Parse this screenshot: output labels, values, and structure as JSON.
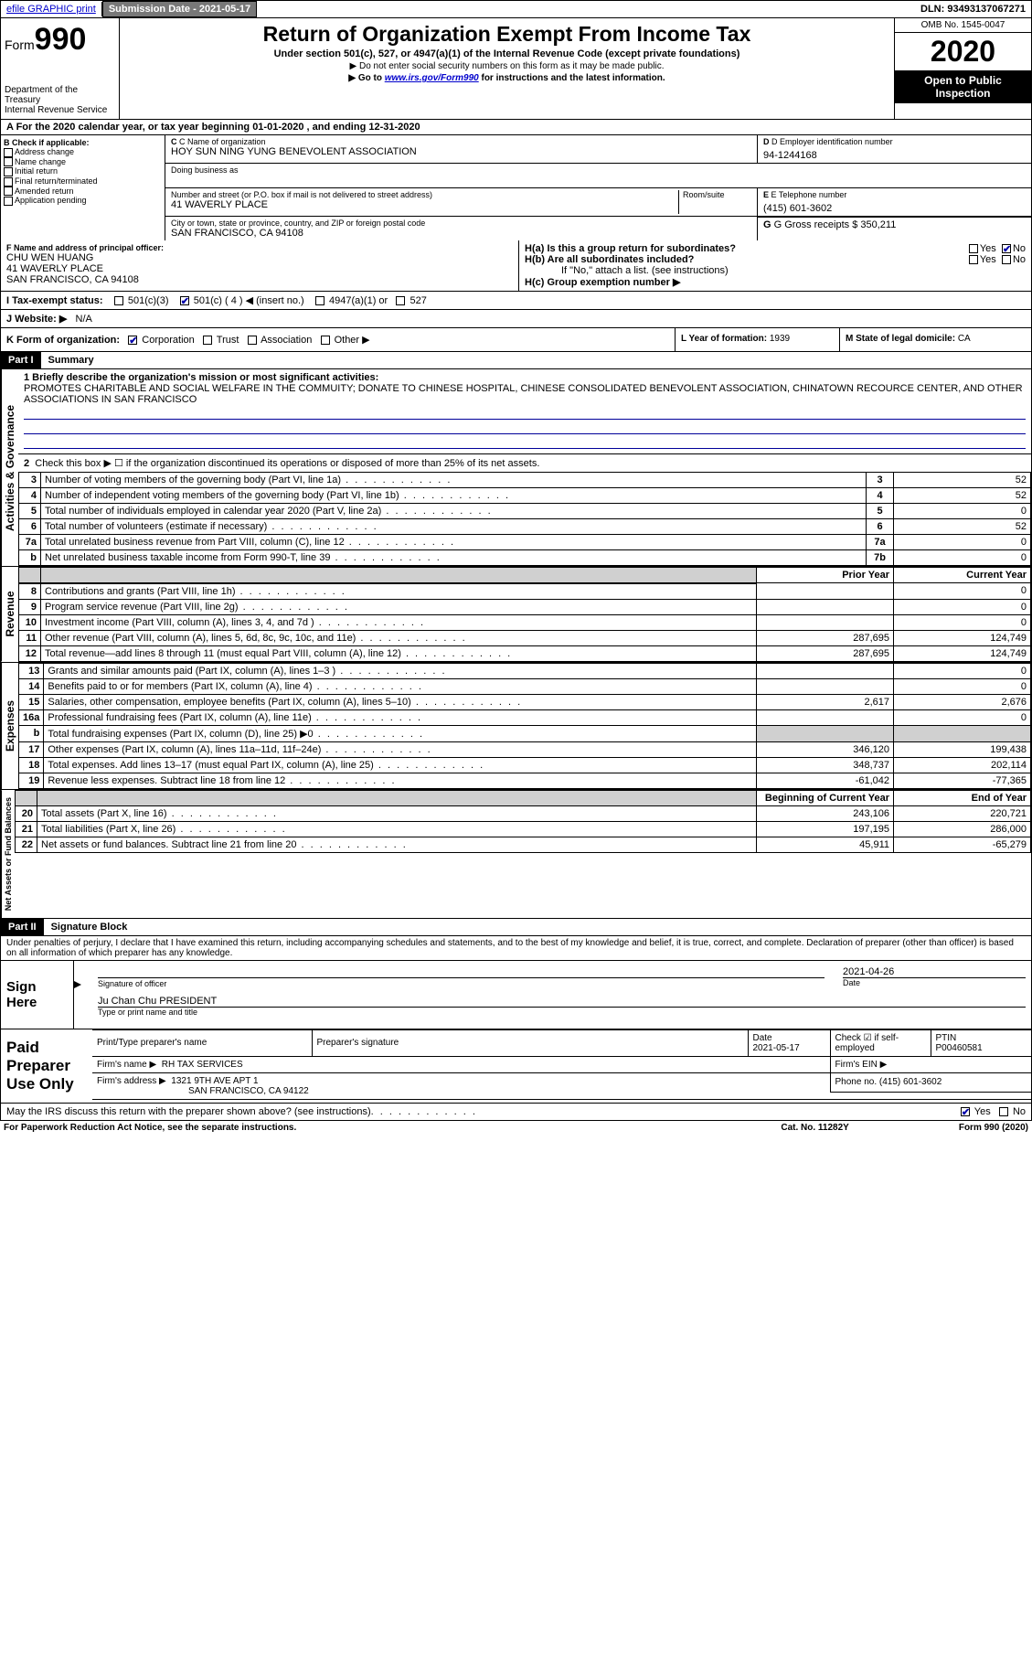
{
  "topbar": {
    "efile": "efile GRAPHIC print",
    "subdate_label": "Submission Date - 2021-05-17",
    "dln": "DLN: 93493137067271"
  },
  "header": {
    "form_prefix": "Form",
    "form_num": "990",
    "dept": "Department of the Treasury",
    "irs": "Internal Revenue Service",
    "title": "Return of Organization Exempt From Income Tax",
    "sub": "Under section 501(c), 527, or 4947(a)(1) of the Internal Revenue Code (except private foundations)",
    "note1": "▶ Do not enter social security numbers on this form as it may be made public.",
    "note2_pre": "▶ Go to ",
    "note2_link": "www.irs.gov/Form990",
    "note2_post": " for instructions and the latest information.",
    "omb": "OMB No. 1545-0047",
    "year": "2020",
    "inspect": "Open to Public Inspection"
  },
  "rowA": "A For the 2020 calendar year, or tax year beginning 01-01-2020    , and ending 12-31-2020",
  "colB": {
    "label": "B Check if applicable:",
    "items": [
      "Address change",
      "Name change",
      "Initial return",
      "Final return/terminated",
      "Amended return",
      "Application pending"
    ]
  },
  "colC": {
    "name_label": "C Name of organization",
    "name": "HOY SUN NING YUNG BENEVOLENT ASSOCIATION",
    "dba_label": "Doing business as",
    "addr_label": "Number and street (or P.O. box if mail is not delivered to street address)",
    "room_label": "Room/suite",
    "addr": "41 WAVERLY PLACE",
    "city_label": "City or town, state or province, country, and ZIP or foreign postal code",
    "city": "SAN FRANCISCO, CA  94108"
  },
  "colD": {
    "label": "D Employer identification number",
    "val": "94-1244168"
  },
  "colE": {
    "label": "E Telephone number",
    "val": "(415) 601-3602"
  },
  "colG": {
    "label": "G Gross receipts $",
    "val": "350,211"
  },
  "colF": {
    "label": "F  Name and address of principal officer:",
    "name": "CHU WEN HUANG",
    "addr1": "41 WAVERLY PLACE",
    "addr2": "SAN FRANCISCO, CA  94108"
  },
  "colH": {
    "a": "H(a)  Is this a group return for subordinates?",
    "b": "H(b)  Are all subordinates included?",
    "b_note": "If \"No,\" attach a list. (see instructions)",
    "c": "H(c)  Group exemption number ▶",
    "yes": "Yes",
    "no": "No"
  },
  "taxI": {
    "label": "I   Tax-exempt status:",
    "o1": "501(c)(3)",
    "o2": "501(c) ( 4 ) ◀ (insert no.)",
    "o3": "4947(a)(1) or",
    "o4": "527"
  },
  "webJ": {
    "label": "J   Website: ▶",
    "val": "N/A"
  },
  "rowK": {
    "label": "K Form of organization:",
    "o1": "Corporation",
    "o2": "Trust",
    "o3": "Association",
    "o4": "Other ▶"
  },
  "rowL": {
    "label": "L Year of formation:",
    "val": "1939"
  },
  "rowM": {
    "label": "M State of legal domicile:",
    "val": "CA"
  },
  "part1": {
    "hdr": "Part I",
    "title": "Summary"
  },
  "summary": {
    "q1": "1  Briefly describe the organization's mission or most significant activities:",
    "mission": "PROMOTES CHARITABLE AND SOCIAL WELFARE IN THE COMMUITY; DONATE TO CHINESE HOSPITAL, CHINESE CONSOLIDATED BENEVOLENT ASSOCIATION, CHINATOWN RECOURCE CENTER, AND OTHER ASSOCIATIONS IN SAN FRANCISCO",
    "q2": "Check this box ▶ ☐  if the organization discontinued its operations or disposed of more than 25% of its net assets.",
    "lines": [
      {
        "n": "3",
        "d": "Number of voting members of the governing body (Part VI, line 1a)",
        "box": "3",
        "v": "52"
      },
      {
        "n": "4",
        "d": "Number of independent voting members of the governing body (Part VI, line 1b)",
        "box": "4",
        "v": "52"
      },
      {
        "n": "5",
        "d": "Total number of individuals employed in calendar year 2020 (Part V, line 2a)",
        "box": "5",
        "v": "0"
      },
      {
        "n": "6",
        "d": "Total number of volunteers (estimate if necessary)",
        "box": "6",
        "v": "52"
      },
      {
        "n": "7a",
        "d": "Total unrelated business revenue from Part VIII, column (C), line 12",
        "box": "7a",
        "v": "0"
      },
      {
        "n": "b",
        "d": "Net unrelated business taxable income from Form 990-T, line 39",
        "box": "7b",
        "v": "0"
      }
    ],
    "py": "Prior Year",
    "cy": "Current Year",
    "rev": [
      {
        "n": "8",
        "d": "Contributions and grants (Part VIII, line 1h)",
        "p": "",
        "c": "0"
      },
      {
        "n": "9",
        "d": "Program service revenue (Part VIII, line 2g)",
        "p": "",
        "c": "0"
      },
      {
        "n": "10",
        "d": "Investment income (Part VIII, column (A), lines 3, 4, and 7d )",
        "p": "",
        "c": "0"
      },
      {
        "n": "11",
        "d": "Other revenue (Part VIII, column (A), lines 5, 6d, 8c, 9c, 10c, and 11e)",
        "p": "287,695",
        "c": "124,749"
      },
      {
        "n": "12",
        "d": "Total revenue—add lines 8 through 11 (must equal Part VIII, column (A), line 12)",
        "p": "287,695",
        "c": "124,749"
      }
    ],
    "exp": [
      {
        "n": "13",
        "d": "Grants and similar amounts paid (Part IX, column (A), lines 1–3 )",
        "p": "",
        "c": "0"
      },
      {
        "n": "14",
        "d": "Benefits paid to or for members (Part IX, column (A), line 4)",
        "p": "",
        "c": "0"
      },
      {
        "n": "15",
        "d": "Salaries, other compensation, employee benefits (Part IX, column (A), lines 5–10)",
        "p": "2,617",
        "c": "2,676"
      },
      {
        "n": "16a",
        "d": "Professional fundraising fees (Part IX, column (A), line 11e)",
        "p": "",
        "c": "0"
      },
      {
        "n": "b",
        "d": "Total fundraising expenses (Part IX, column (D), line 25) ▶0",
        "p": "SHADE",
        "c": "SHADE"
      },
      {
        "n": "17",
        "d": "Other expenses (Part IX, column (A), lines 11a–11d, 11f–24e)",
        "p": "346,120",
        "c": "199,438"
      },
      {
        "n": "18",
        "d": "Total expenses. Add lines 13–17 (must equal Part IX, column (A), line 25)",
        "p": "348,737",
        "c": "202,114"
      },
      {
        "n": "19",
        "d": "Revenue less expenses. Subtract line 18 from line 12",
        "p": "-61,042",
        "c": "-77,365"
      }
    ],
    "boy": "Beginning of Current Year",
    "eoy": "End of Year",
    "net": [
      {
        "n": "20",
        "d": "Total assets (Part X, line 16)",
        "p": "243,106",
        "c": "220,721"
      },
      {
        "n": "21",
        "d": "Total liabilities (Part X, line 26)",
        "p": "197,195",
        "c": "286,000"
      },
      {
        "n": "22",
        "d": "Net assets or fund balances. Subtract line 21 from line 20",
        "p": "45,911",
        "c": "-65,279"
      }
    ],
    "vlabels": {
      "act": "Activities & Governance",
      "rev": "Revenue",
      "exp": "Expenses",
      "net": "Net Assets or Fund Balances"
    }
  },
  "part2": {
    "hdr": "Part II",
    "title": "Signature Block",
    "perjury": "Under penalties of perjury, I declare that I have examined this return, including accompanying schedules and statements, and to the best of my knowledge and belief, it is true, correct, and complete. Declaration of preparer (other than officer) is based on all information of which preparer has any knowledge."
  },
  "sign": {
    "here": "Sign Here",
    "sig_label": "Signature of officer",
    "date_label": "Date",
    "date": "2021-04-26",
    "name": "Ju Chan Chu PRESIDENT",
    "name_label": "Type or print name and title"
  },
  "prep": {
    "label": "Paid Preparer Use Only",
    "h1": "Print/Type preparer's name",
    "h2": "Preparer's signature",
    "h3": "Date",
    "h3v": "2021-05-17",
    "h4": "Check ☑ if self-employed",
    "h5": "PTIN",
    "h5v": "P00460581",
    "firm_label": "Firm's name    ▶",
    "firm": "RH TAX SERVICES",
    "ein_label": "Firm's EIN ▶",
    "addr_label": "Firm's address ▶",
    "addr1": "1321 9TH AVE APT 1",
    "addr2": "SAN FRANCISCO, CA  94122",
    "phone_label": "Phone no.",
    "phone": "(415) 601-3602",
    "irs_q": "May the IRS discuss this return with the preparer shown above? (see instructions)",
    "yes": "Yes",
    "no": "No"
  },
  "footer": {
    "pra": "For Paperwork Reduction Act Notice, see the separate instructions.",
    "cat": "Cat. No. 11282Y",
    "form": "Form 990 (2020)"
  },
  "colors": {
    "link": "#0000cc",
    "shade": "#d0d0d0",
    "black": "#000000"
  }
}
